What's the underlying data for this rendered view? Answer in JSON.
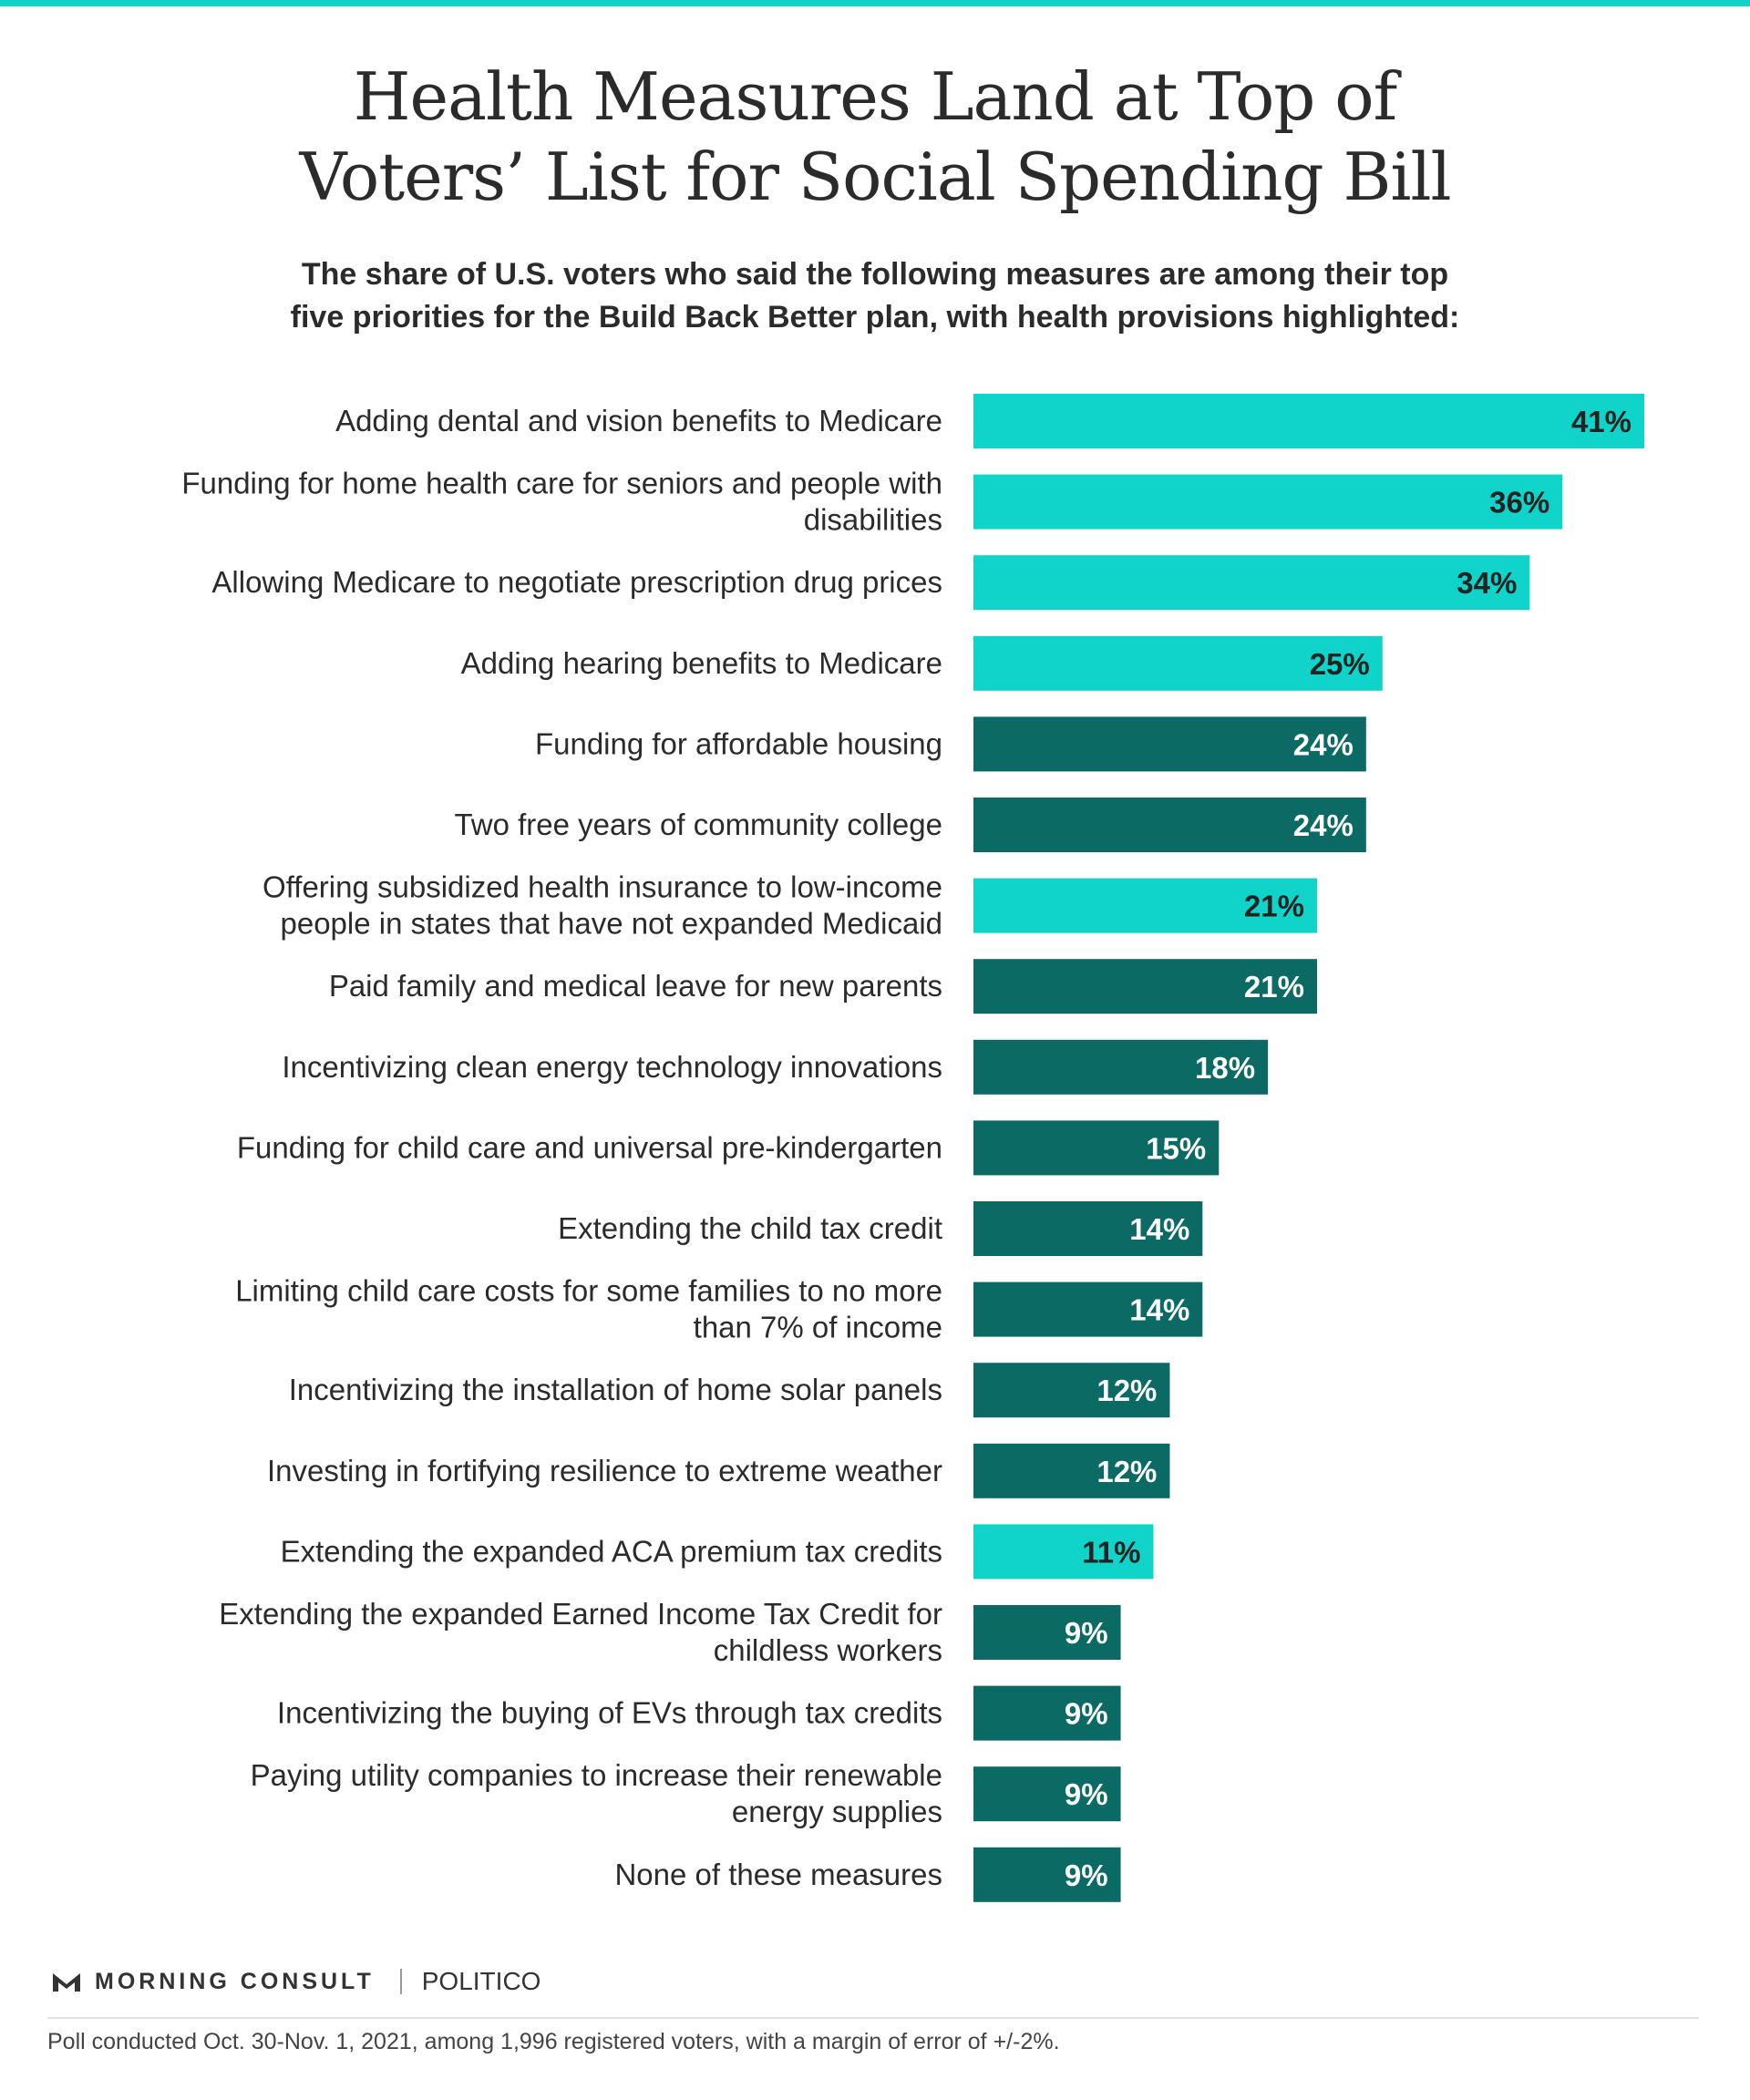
{
  "header": {
    "title_line1": "Health Measures Land at Top of",
    "title_line2": "Voters’ List for Social Spending Bill",
    "subtitle_line1": "The share of U.S. voters who said the following measures are among their top",
    "subtitle_line2": "five priorities for the Build Back Better plan, with health provisions highlighted:"
  },
  "colors": {
    "health": "#10d3c9",
    "other": "#0b6a63",
    "health_label": "#222222",
    "other_label": "#ffffff",
    "accent_rule": "#10d3c9"
  },
  "chart_data": {
    "type": "bar",
    "orientation": "horizontal",
    "xlim": [
      0,
      41
    ],
    "grid": false,
    "value_suffix": "%",
    "categories": [
      [
        "Adding dental and vision benefits to Medicare"
      ],
      [
        "Funding for home health care for seniors and people with",
        "disabilities"
      ],
      [
        "Allowing Medicare to negotiate prescription drug prices"
      ],
      [
        "Adding hearing benefits to Medicare"
      ],
      [
        "Funding for affordable housing"
      ],
      [
        "Two free years of community college"
      ],
      [
        "Offering subsidized health insurance to low-income",
        "people in states that have not expanded Medicaid"
      ],
      [
        "Paid family and medical leave for new parents"
      ],
      [
        "Incentivizing clean energy technology innovations"
      ],
      [
        "Funding for child care and universal pre-kindergarten"
      ],
      [
        "Extending the child tax credit"
      ],
      [
        "Limiting child care costs for some families to no more",
        "than 7% of income"
      ],
      [
        "Incentivizing the installation of home solar panels"
      ],
      [
        "Investing in fortifying resilience to extreme weather"
      ],
      [
        "Extending the expanded ACA premium tax credits"
      ],
      [
        "Extending the expanded Earned Income Tax Credit for",
        "childless workers"
      ],
      [
        "Incentivizing the buying of EVs through tax credits"
      ],
      [
        "Paying utility companies to increase their renewable",
        "energy supplies"
      ],
      [
        "None of these measures"
      ]
    ],
    "values": [
      41,
      36,
      34,
      25,
      24,
      24,
      21,
      21,
      18,
      15,
      14,
      14,
      12,
      12,
      11,
      9,
      9,
      9,
      9
    ],
    "value_labels": [
      "41%",
      "36%",
      "34%",
      "25%",
      "24%",
      "24%",
      "21%",
      "21%",
      "18%",
      "15%",
      "14%",
      "14%",
      "12%",
      "12%",
      "11%",
      "9%",
      "9%",
      "9%",
      "9%"
    ],
    "health_provision": [
      true,
      true,
      true,
      true,
      false,
      false,
      true,
      false,
      false,
      false,
      false,
      false,
      false,
      false,
      true,
      false,
      false,
      false,
      false
    ]
  },
  "footer": {
    "brand_morning_consult": "MORNING CONSULT",
    "brand_politico": "POLITICO",
    "note": "Poll conducted Oct. 30-Nov. 1, 2021, among 1,996 registered voters, with a margin of error of +/-2%."
  }
}
